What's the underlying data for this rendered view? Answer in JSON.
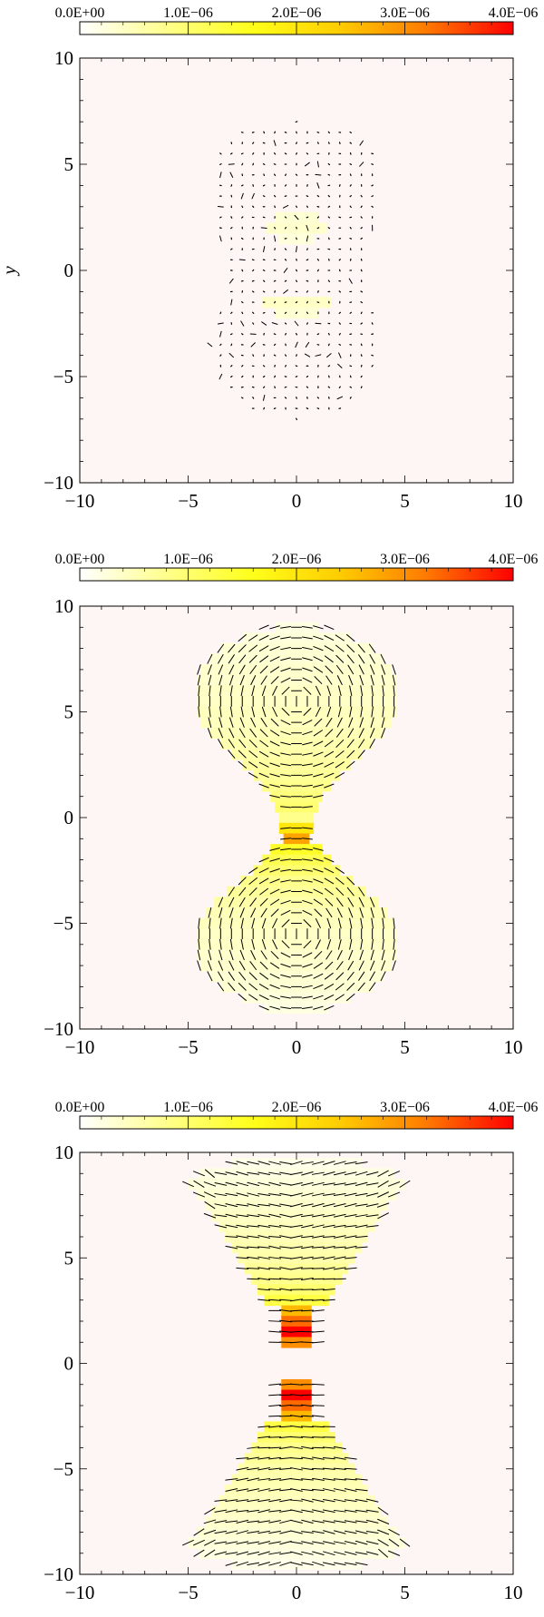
{
  "chart_data": [
    {
      "type": "heatmap",
      "title": "",
      "xlabel": "",
      "ylabel": "y",
      "xlim": [
        -10,
        10
      ],
      "ylim": [
        -10,
        10
      ],
      "xticks": [
        "−10",
        "−5",
        "0",
        "5",
        "10"
      ],
      "yticks": [
        "−10",
        "−5",
        "0",
        "5",
        "10"
      ],
      "colorbar": {
        "min": 0,
        "max": 4e-06,
        "ticks": [
          "0.0E+00",
          "1.0E−06",
          "2.0E−06",
          "3.0E−06",
          "4.0E−06"
        ],
        "colors": [
          "#ffffff",
          "#ffff8c",
          "#ffff1a",
          "#ffcc00",
          "#ff7a00",
          "#ff0000"
        ]
      },
      "background_color": "#fdf6f4",
      "cells": [
        {
          "y": 2.0,
          "x_half": 1.4,
          "value": 3.5e-07
        },
        {
          "y": 2.5,
          "x_half": 1.0,
          "value": 3e-07
        },
        {
          "y": 1.5,
          "x_half": 0.8,
          "value": 2.5e-07
        },
        {
          "y": -1.5,
          "x_half": 1.6,
          "value": 4e-07
        },
        {
          "y": -2.0,
          "x_half": 1.0,
          "value": 3e-07
        }
      ],
      "vector_field": "random",
      "rows": [
        {
          "y": 7.0,
          "x_half": 0.0
        },
        {
          "y": 6.5,
          "x_half": 2.5
        },
        {
          "y": 6.0,
          "x_half": 3.0
        },
        {
          "y": 5.5,
          "x_half": 3.5
        },
        {
          "y": 5.0,
          "x_half": 3.6
        },
        {
          "y": 4.5,
          "x_half": 3.7
        },
        {
          "y": 4.0,
          "x_half": 3.7
        },
        {
          "y": 3.5,
          "x_half": 3.7
        },
        {
          "y": 3.0,
          "x_half": 3.7
        },
        {
          "y": 2.5,
          "x_half": 3.6
        },
        {
          "y": 2.0,
          "x_half": 3.5
        },
        {
          "y": 1.5,
          "x_half": 3.3
        },
        {
          "y": 1.0,
          "x_half": 3.0
        },
        {
          "y": 0.5,
          "x_half": 3.0
        },
        {
          "y": 0.0,
          "x_half": 3.0
        },
        {
          "y": -0.5,
          "x_half": 3.0
        },
        {
          "y": -1.0,
          "x_half": 3.0
        },
        {
          "y": -1.5,
          "x_half": 3.2
        },
        {
          "y": -2.0,
          "x_half": 3.5
        },
        {
          "y": -2.5,
          "x_half": 3.6
        },
        {
          "y": -3.0,
          "x_half": 3.7
        },
        {
          "y": -3.5,
          "x_half": 3.8
        },
        {
          "y": -4.0,
          "x_half": 3.6
        },
        {
          "y": -4.5,
          "x_half": 3.5
        },
        {
          "y": -5.0,
          "x_half": 3.3
        },
        {
          "y": -5.5,
          "x_half": 3.0
        },
        {
          "y": -6.0,
          "x_half": 2.6
        },
        {
          "y": -6.5,
          "x_half": 2.0
        },
        {
          "y": -7.0,
          "x_half": 0.0
        }
      ]
    },
    {
      "type": "heatmap",
      "title": "",
      "xlabel": "",
      "ylabel": "",
      "xlim": [
        -10,
        10
      ],
      "ylim": [
        -10,
        10
      ],
      "xticks": [
        "−10",
        "−5",
        "0",
        "5",
        "10"
      ],
      "yticks": [
        "−10",
        "−5",
        "0",
        "5",
        "10"
      ],
      "colorbar": {
        "min": 0,
        "max": 4e-06,
        "ticks": [
          "0.0E+00",
          "1.0E−06",
          "2.0E−06",
          "3.0E−06",
          "4.0E−06"
        ],
        "colors": [
          "#ffffff",
          "#ffff8c",
          "#ffff1a",
          "#ffcc00",
          "#ff7a00",
          "#ff0000"
        ]
      },
      "background_color": "#fdf6f4",
      "cells": [
        {
          "y": 9.0,
          "x_half": 1.0,
          "value": 2e-07
        },
        {
          "y": 8.5,
          "x_half": 2.5,
          "value": 2.5e-07
        },
        {
          "y": 8.0,
          "x_half": 3.5,
          "value": 3e-07
        },
        {
          "y": 7.5,
          "x_half": 4.0,
          "value": 3e-07
        },
        {
          "y": 7.0,
          "x_half": 4.4,
          "value": 3.5e-07
        },
        {
          "y": 6.5,
          "x_half": 4.6,
          "value": 3.5e-07
        },
        {
          "y": 6.0,
          "x_half": 4.6,
          "value": 4e-07
        },
        {
          "y": 5.5,
          "x_half": 4.6,
          "value": 4e-07
        },
        {
          "y": 5.0,
          "x_half": 4.6,
          "value": 4.5e-07
        },
        {
          "y": 4.5,
          "x_half": 4.4,
          "value": 4.5e-07
        },
        {
          "y": 4.0,
          "x_half": 4.0,
          "value": 5e-07
        },
        {
          "y": 3.5,
          "x_half": 3.5,
          "value": 5.5e-07
        },
        {
          "y": 3.0,
          "x_half": 3.0,
          "value": 6e-07
        },
        {
          "y": 2.5,
          "x_half": 2.5,
          "value": 6.5e-07
        },
        {
          "y": 2.0,
          "x_half": 2.0,
          "value": 7e-07
        },
        {
          "y": 1.5,
          "x_half": 1.6,
          "value": 8e-07
        },
        {
          "y": 1.0,
          "x_half": 1.2,
          "value": 9e-07
        },
        {
          "y": 0.5,
          "x_half": 1.0,
          "value": 1e-06
        },
        {
          "y": 0.0,
          "x_half": 0.8,
          "value": 8e-07
        },
        {
          "y": -0.5,
          "x_half": 0.8,
          "value": 2e-06
        },
        {
          "y": -1.0,
          "x_half": 0.6,
          "value": 2.8e-06
        },
        {
          "y": -1.5,
          "x_half": 1.2,
          "value": 1.5e-06
        },
        {
          "y": -2.0,
          "x_half": 1.6,
          "value": 1.2e-06
        },
        {
          "y": -2.5,
          "x_half": 2.0,
          "value": 1e-06
        },
        {
          "y": -3.0,
          "x_half": 2.6,
          "value": 8e-07
        },
        {
          "y": -3.5,
          "x_half": 3.2,
          "value": 7e-07
        },
        {
          "y": -4.0,
          "x_half": 3.8,
          "value": 6e-07
        },
        {
          "y": -4.5,
          "x_half": 4.2,
          "value": 5e-07
        },
        {
          "y": -5.0,
          "x_half": 4.5,
          "value": 4.5e-07
        },
        {
          "y": -5.5,
          "x_half": 4.6,
          "value": 4e-07
        },
        {
          "y": -6.0,
          "x_half": 4.6,
          "value": 4e-07
        },
        {
          "y": -6.5,
          "x_half": 4.6,
          "value": 3.5e-07
        },
        {
          "y": -7.0,
          "x_half": 4.4,
          "value": 3.5e-07
        },
        {
          "y": -7.5,
          "x_half": 4.0,
          "value": 3e-07
        },
        {
          "y": -8.0,
          "x_half": 3.5,
          "value": 3e-07
        },
        {
          "y": -8.5,
          "x_half": 2.5,
          "value": 2.5e-07
        },
        {
          "y": -9.0,
          "x_half": 1.5,
          "value": 2e-07
        }
      ],
      "vector_field": "circular",
      "rows": [
        {
          "y": 9.0,
          "x_half": 1.5
        },
        {
          "y": 8.5,
          "x_half": 2.5
        },
        {
          "y": 8.0,
          "x_half": 3.5
        },
        {
          "y": 7.5,
          "x_half": 4.0
        },
        {
          "y": 7.0,
          "x_half": 4.5
        },
        {
          "y": 6.5,
          "x_half": 4.5
        },
        {
          "y": 6.0,
          "x_half": 4.5
        },
        {
          "y": 5.5,
          "x_half": 4.5
        },
        {
          "y": 5.0,
          "x_half": 4.5
        },
        {
          "y": 4.5,
          "x_half": 4.0
        },
        {
          "y": 4.0,
          "x_half": 4.0
        },
        {
          "y": 3.5,
          "x_half": 3.5
        },
        {
          "y": 3.0,
          "x_half": 3.0
        },
        {
          "y": 2.5,
          "x_half": 2.5
        },
        {
          "y": 2.0,
          "x_half": 2.0
        },
        {
          "y": 1.5,
          "x_half": 1.5
        },
        {
          "y": 1.0,
          "x_half": 1.0
        },
        {
          "y": 0.5,
          "x_half": 0.5
        },
        {
          "y": -0.5,
          "x_half": 0.5
        },
        {
          "y": -1.0,
          "x_half": 0.5
        },
        {
          "y": -1.5,
          "x_half": 1.0
        },
        {
          "y": -2.0,
          "x_half": 1.5
        },
        {
          "y": -2.5,
          "x_half": 2.0
        },
        {
          "y": -3.0,
          "x_half": 2.5
        },
        {
          "y": -3.5,
          "x_half": 3.0
        },
        {
          "y": -4.0,
          "x_half": 3.5
        },
        {
          "y": -4.5,
          "x_half": 4.0
        },
        {
          "y": -5.0,
          "x_half": 4.5
        },
        {
          "y": -5.5,
          "x_half": 4.5
        },
        {
          "y": -6.0,
          "x_half": 4.5
        },
        {
          "y": -6.5,
          "x_half": 4.5
        },
        {
          "y": -7.0,
          "x_half": 4.5
        },
        {
          "y": -7.5,
          "x_half": 4.0
        },
        {
          "y": -8.0,
          "x_half": 3.5
        },
        {
          "y": -8.5,
          "x_half": 2.5
        },
        {
          "y": -9.0,
          "x_half": 1.5
        }
      ]
    },
    {
      "type": "heatmap",
      "title": "",
      "xlabel": "",
      "ylabel": "",
      "xlim": [
        -10,
        10
      ],
      "ylim": [
        -10,
        10
      ],
      "xticks": [
        "−10",
        "−5",
        "0",
        "5",
        "10"
      ],
      "yticks": [
        "−10",
        "−5",
        "0",
        "5",
        "10"
      ],
      "colorbar": {
        "min": 0,
        "max": 4e-06,
        "ticks": [
          "0.0E+00",
          "1.0E−06",
          "2.0E−06",
          "3.0E−06",
          "4.0E−06"
        ],
        "colors": [
          "#ffffff",
          "#ffff8c",
          "#ffff1a",
          "#ffcc00",
          "#ff7a00",
          "#ff0000"
        ]
      },
      "background_color": "#fdf6f4",
      "cells": [
        {
          "y": 9.5,
          "x_half": 3.0,
          "value": 1.5e-07
        },
        {
          "y": 9.0,
          "x_half": 4.5,
          "value": 2e-07
        },
        {
          "y": 8.5,
          "x_half": 5.0,
          "value": 2.5e-07
        },
        {
          "y": 8.0,
          "x_half": 4.6,
          "value": 3e-07
        },
        {
          "y": 7.5,
          "x_half": 4.2,
          "value": 3.5e-07
        },
        {
          "y": 7.0,
          "x_half": 3.9,
          "value": 4e-07
        },
        {
          "y": 6.5,
          "x_half": 3.6,
          "value": 4.5e-07
        },
        {
          "y": 6.0,
          "x_half": 3.3,
          "value": 5e-07
        },
        {
          "y": 5.5,
          "x_half": 3.0,
          "value": 5.5e-07
        },
        {
          "y": 5.0,
          "x_half": 2.7,
          "value": 6e-07
        },
        {
          "y": 4.5,
          "x_half": 2.4,
          "value": 7e-07
        },
        {
          "y": 4.0,
          "x_half": 2.1,
          "value": 8e-07
        },
        {
          "y": 3.5,
          "x_half": 1.8,
          "value": 1e-06
        },
        {
          "y": 3.0,
          "x_half": 1.5,
          "value": 1.3e-06
        },
        {
          "y": 2.5,
          "x_half": 0.7,
          "value": 2.6e-06
        },
        {
          "y": 2.0,
          "x_half": 0.7,
          "value": 3.3e-06
        },
        {
          "y": 1.5,
          "x_half": 0.7,
          "value": 4e-06
        },
        {
          "y": 1.0,
          "x_half": 0.7,
          "value": 3e-06
        },
        {
          "y": -1.0,
          "x_half": 0.7,
          "value": 3e-06
        },
        {
          "y": -1.5,
          "x_half": 0.7,
          "value": 4e-06
        },
        {
          "y": -2.0,
          "x_half": 0.7,
          "value": 3.3e-06
        },
        {
          "y": -2.5,
          "x_half": 0.7,
          "value": 2.6e-06
        },
        {
          "y": -3.0,
          "x_half": 1.5,
          "value": 1.3e-06
        },
        {
          "y": -3.5,
          "x_half": 1.8,
          "value": 1e-06
        },
        {
          "y": -4.0,
          "x_half": 2.1,
          "value": 8e-07
        },
        {
          "y": -4.5,
          "x_half": 2.4,
          "value": 7e-07
        },
        {
          "y": -5.0,
          "x_half": 2.7,
          "value": 6e-07
        },
        {
          "y": -5.5,
          "x_half": 3.0,
          "value": 5.5e-07
        },
        {
          "y": -6.0,
          "x_half": 3.3,
          "value": 5e-07
        },
        {
          "y": -6.5,
          "x_half": 3.6,
          "value": 4.5e-07
        },
        {
          "y": -7.0,
          "x_half": 3.9,
          "value": 4e-07
        },
        {
          "y": -7.5,
          "x_half": 4.2,
          "value": 3.5e-07
        },
        {
          "y": -8.0,
          "x_half": 4.6,
          "value": 3e-07
        },
        {
          "y": -8.5,
          "x_half": 5.0,
          "value": 2.5e-07
        },
        {
          "y": -9.0,
          "x_half": 4.5,
          "value": 2e-07
        },
        {
          "y": -9.5,
          "x_half": 3.0,
          "value": 1.5e-07
        }
      ],
      "vector_field": "horizontal",
      "rows": [
        {
          "y": 9.5,
          "x_half": 3.0
        },
        {
          "y": 9.0,
          "x_half": 4.5
        },
        {
          "y": 8.5,
          "x_half": 5.0
        },
        {
          "y": 8.0,
          "x_half": 4.5
        },
        {
          "y": 7.5,
          "x_half": 4.0
        },
        {
          "y": 7.0,
          "x_half": 4.0
        },
        {
          "y": 6.5,
          "x_half": 3.5
        },
        {
          "y": 6.0,
          "x_half": 3.0
        },
        {
          "y": 5.5,
          "x_half": 3.0
        },
        {
          "y": 5.0,
          "x_half": 2.5
        },
        {
          "y": 4.5,
          "x_half": 2.5
        },
        {
          "y": 4.0,
          "x_half": 2.0
        },
        {
          "y": 3.5,
          "x_half": 1.5
        },
        {
          "y": 3.0,
          "x_half": 1.5
        },
        {
          "y": 2.5,
          "x_half": 1.0
        },
        {
          "y": 2.0,
          "x_half": 1.0
        },
        {
          "y": 1.5,
          "x_half": 1.0
        },
        {
          "y": 1.0,
          "x_half": 1.0
        },
        {
          "y": -1.0,
          "x_half": 1.0
        },
        {
          "y": -1.5,
          "x_half": 1.0
        },
        {
          "y": -2.0,
          "x_half": 1.0
        },
        {
          "y": -2.5,
          "x_half": 1.0
        },
        {
          "y": -3.0,
          "x_half": 1.5
        },
        {
          "y": -3.5,
          "x_half": 1.5
        },
        {
          "y": -4.0,
          "x_half": 2.0
        },
        {
          "y": -4.5,
          "x_half": 2.5
        },
        {
          "y": -5.0,
          "x_half": 2.5
        },
        {
          "y": -5.5,
          "x_half": 3.0
        },
        {
          "y": -6.0,
          "x_half": 3.0
        },
        {
          "y": -6.5,
          "x_half": 3.5
        },
        {
          "y": -7.0,
          "x_half": 4.0
        },
        {
          "y": -7.5,
          "x_half": 4.0
        },
        {
          "y": -8.0,
          "x_half": 4.5
        },
        {
          "y": -8.5,
          "x_half": 5.0
        },
        {
          "y": -9.0,
          "x_half": 4.5
        },
        {
          "y": -9.5,
          "x_half": 3.0
        }
      ]
    }
  ]
}
